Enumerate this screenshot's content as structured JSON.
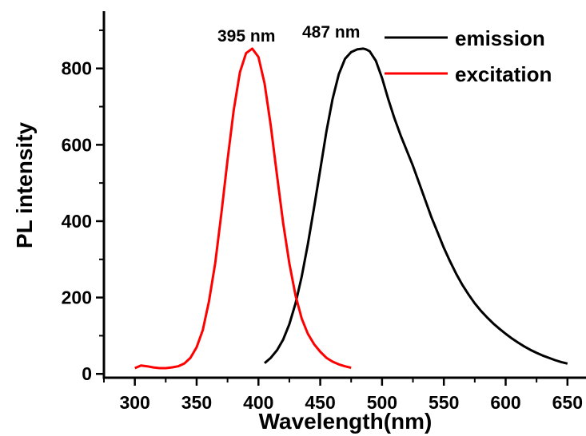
{
  "chart_data": {
    "type": "line",
    "xlabel": "Wavelength(nm)",
    "ylabel": "PL intensity",
    "xlim": [
      275,
      665
    ],
    "ylim": [
      -10,
      950
    ],
    "xticks": [
      300,
      350,
      400,
      450,
      500,
      550,
      600,
      650
    ],
    "yticks": [
      0,
      200,
      400,
      600,
      800
    ],
    "xtick_labels": [
      "300",
      "350",
      "400",
      "450",
      "500",
      "550",
      "600",
      "650"
    ],
    "ytick_labels": [
      "0",
      "200",
      "400",
      "600",
      "800"
    ],
    "legend_position": "top-right",
    "annotations": [
      {
        "text": "395 nm",
        "x": 395,
        "y": 885
      },
      {
        "text": "487 nm",
        "x": 470,
        "y": 885
      }
    ],
    "series": [
      {
        "name": "emission",
        "color": "#000000",
        "x": [
          405,
          410,
          415,
          420,
          425,
          430,
          435,
          440,
          445,
          450,
          455,
          460,
          465,
          470,
          475,
          480,
          485,
          487,
          490,
          495,
          500,
          505,
          510,
          515,
          520,
          525,
          530,
          535,
          540,
          545,
          550,
          555,
          560,
          565,
          570,
          575,
          580,
          585,
          590,
          595,
          600,
          605,
          610,
          615,
          620,
          625,
          630,
          635,
          640,
          645,
          650
        ],
        "y": [
          28,
          42,
          62,
          90,
          130,
          185,
          255,
          340,
          435,
          535,
          635,
          720,
          785,
          825,
          843,
          850,
          852,
          850,
          845,
          820,
          775,
          720,
          670,
          625,
          585,
          545,
          500,
          455,
          410,
          370,
          330,
          295,
          262,
          233,
          208,
          185,
          165,
          148,
          132,
          118,
          105,
          93,
          82,
          72,
          63,
          55,
          48,
          42,
          36,
          31,
          27
        ]
      },
      {
        "name": "excitation",
        "color": "#ff0000",
        "x": [
          300,
          305,
          310,
          315,
          320,
          325,
          330,
          335,
          340,
          345,
          350,
          355,
          360,
          365,
          370,
          375,
          380,
          385,
          390,
          395,
          400,
          405,
          410,
          415,
          420,
          425,
          430,
          435,
          440,
          445,
          450,
          455,
          460,
          465,
          470,
          475
        ],
        "y": [
          15,
          22,
          20,
          17,
          15,
          15,
          17,
          20,
          27,
          42,
          70,
          115,
          190,
          290,
          420,
          560,
          690,
          790,
          840,
          852,
          830,
          760,
          650,
          520,
          395,
          290,
          205,
          145,
          105,
          78,
          58,
          42,
          32,
          25,
          20,
          16
        ]
      }
    ]
  }
}
